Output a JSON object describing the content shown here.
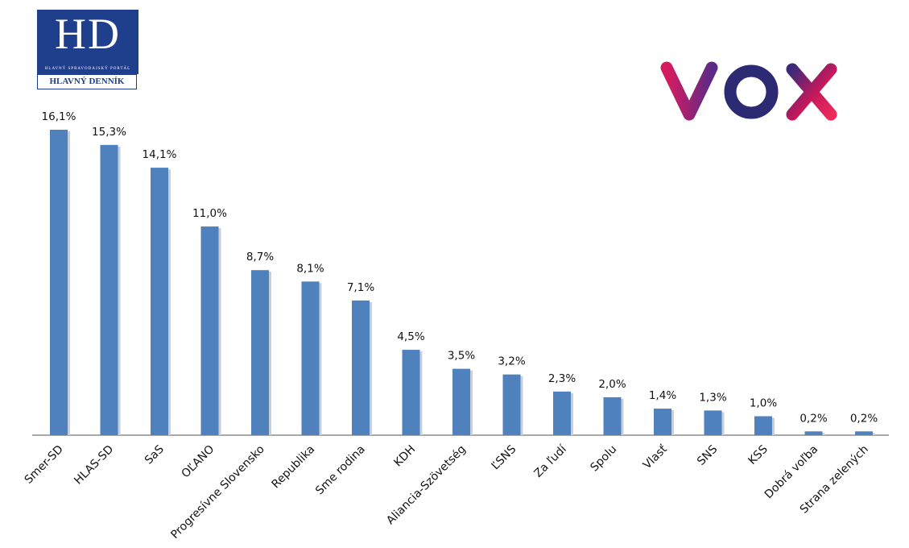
{
  "logos": {
    "hd": {
      "mark": "HD",
      "tagline": "HLAVNÝ SPRAVODAJSKÝ PORTÁL",
      "name": "HLAVNÝ DENNÍK"
    },
    "vox": {
      "text": "VOX",
      "colors": [
        "#c2185b",
        "#2b2a73",
        "#e0245e"
      ]
    }
  },
  "colors": {
    "bar": "#4f81bd",
    "bar_shadow": "#c9cfd9",
    "axis": "#8c8c8c",
    "hd_blue": "#1f3f8c"
  },
  "chart_data": {
    "type": "bar",
    "categories": [
      "Smer-SD",
      "HLAS-SD",
      "SaS",
      "OĽANO",
      "Progresívne Slovensko",
      "Republika",
      "Sme rodina",
      "KDH",
      "Aliancia-Szövetség",
      "ĽSNS",
      "Za ľudí",
      "Spolu",
      "Vlasť",
      "SNS",
      "KSS",
      "Dobrá voľba",
      "Strana zelených"
    ],
    "values": [
      16.1,
      15.3,
      14.1,
      11.0,
      8.7,
      8.1,
      7.1,
      4.5,
      3.5,
      3.2,
      2.3,
      2.0,
      1.4,
      1.3,
      1.0,
      0.2,
      0.2
    ],
    "value_labels": [
      "16,1%",
      "15,3%",
      "14,1%",
      "11,0%",
      "8,7%",
      "8,1%",
      "7,1%",
      "4,5%",
      "3,5%",
      "3,2%",
      "2,3%",
      "2,0%",
      "1,4%",
      "1,3%",
      "1,0%",
      "0,2%",
      "0,2%"
    ],
    "ylim": [
      0,
      16.1
    ],
    "grid": false,
    "legend": "none"
  }
}
